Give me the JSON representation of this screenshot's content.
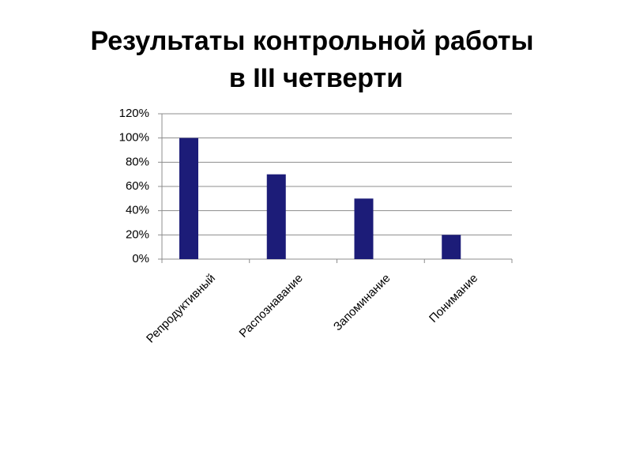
{
  "chart_data": {
    "type": "bar",
    "title": [
      "Результаты контрольной работы",
      "в III четверти"
    ],
    "categories": [
      "Репродуктивный",
      "Распознавание",
      "Запоминание",
      "Понимание"
    ],
    "values": [
      100,
      70,
      50,
      20
    ],
    "color": "#1c1c78",
    "ylim": [
      0,
      120
    ],
    "yticks": [
      {
        "value": 0,
        "label": "0%"
      },
      {
        "value": 20,
        "label": "20%"
      },
      {
        "value": 40,
        "label": "40%"
      },
      {
        "value": 60,
        "label": "60%"
      },
      {
        "value": 80,
        "label": "80%"
      },
      {
        "value": 100,
        "label": "100%"
      },
      {
        "value": 120,
        "label": "120%"
      }
    ],
    "grid": true
  }
}
